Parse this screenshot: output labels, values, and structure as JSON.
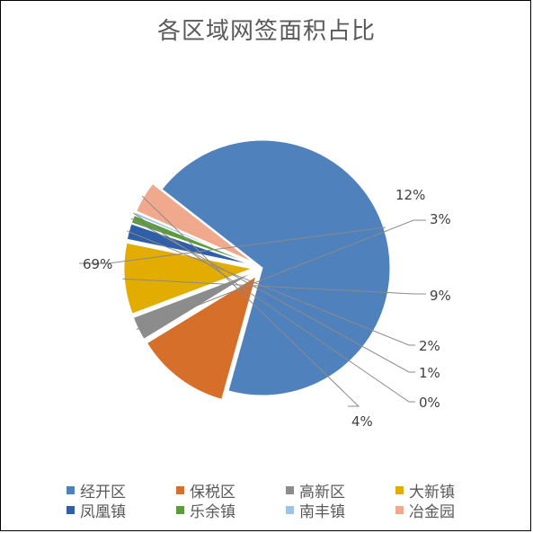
{
  "title": "各区域网签面积占比",
  "chart_data": {
    "type": "pie",
    "title": "各区域网签面积占比",
    "legend_position": "bottom",
    "slices": [
      {
        "name": "经开区",
        "value": 69,
        "label": "69%",
        "color": "#4F81BD"
      },
      {
        "name": "保税区",
        "value": 12,
        "label": "12%",
        "color": "#D66F2A"
      },
      {
        "name": "高新区",
        "value": 3,
        "label": "3%",
        "color": "#8C8C8C"
      },
      {
        "name": "大新镇",
        "value": 9,
        "label": "9%",
        "color": "#E2AC00"
      },
      {
        "name": "凤凰镇",
        "value": 2,
        "label": "2%",
        "color": "#2E5FA8"
      },
      {
        "name": "乐余镇",
        "value": 1,
        "label": "1%",
        "color": "#5B9B3A"
      },
      {
        "name": "南丰镇",
        "value": 0,
        "label": "0%",
        "color": "#9DC3E6"
      },
      {
        "name": "冶金园",
        "value": 4,
        "label": "4%",
        "color": "#F0A98C"
      }
    ]
  }
}
